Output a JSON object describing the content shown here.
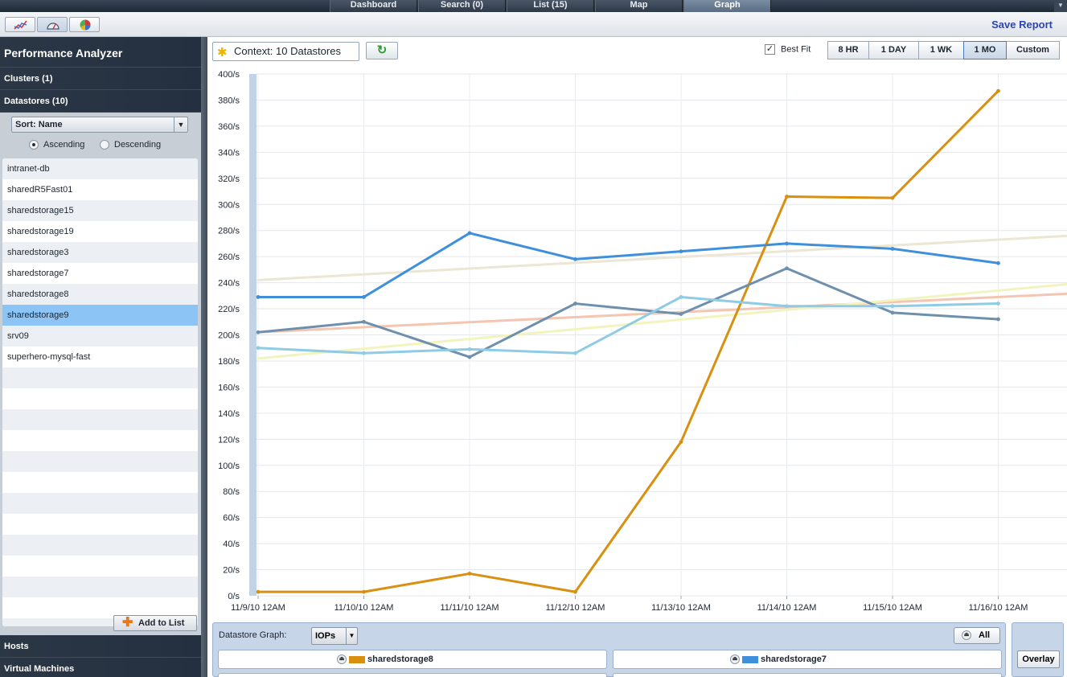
{
  "nav": {
    "tabs": [
      "Dashboard",
      "Search (0)",
      "List (15)",
      "Map",
      "Graph"
    ],
    "active_index": 4
  },
  "toolbar": {
    "icons": [
      "line-chart-icon",
      "gauge-icon",
      "pie-chart-icon"
    ],
    "save_label": "Save Report"
  },
  "sidebar": {
    "title": "Performance Analyzer",
    "clusters_label": "Clusters (1)",
    "datastores_label": "Datastores (10)",
    "sort_value": "Sort: Name",
    "ascending_label": "Ascending",
    "descending_label": "Descending",
    "sort_order": "Ascending",
    "items": [
      "intranet-db",
      "sharedR5Fast01",
      "sharedstorage15",
      "sharedstorage19",
      "sharedstorage3",
      "sharedstorage7",
      "sharedstorage8",
      "sharedstorage9",
      "srv09",
      "superhero-mysql-fast"
    ],
    "selected_item": "sharedstorage9",
    "add_to_list_label": "Add to List",
    "hosts_label": "Hosts",
    "vms_label": "Virtual Machines"
  },
  "controls": {
    "context_label": "Context: 10 Datastores",
    "best_fit_label": "Best Fit",
    "best_fit_checked": true,
    "ranges": [
      "8 HR",
      "1 DAY",
      "1 WK",
      "1 MO",
      "Custom"
    ],
    "selected_range": "1 MO"
  },
  "chart_data": {
    "type": "line",
    "x": [
      "11/9/10 12AM",
      "11/10/10 12AM",
      "11/11/10 12AM",
      "11/12/10 12AM",
      "11/13/10 12AM",
      "11/14/10 12AM",
      "11/15/10 12AM",
      "11/16/10 12AM"
    ],
    "y_ticks": [
      "0/s",
      "20/s",
      "40/s",
      "60/s",
      "80/s",
      "100/s",
      "120/s",
      "140/s",
      "160/s",
      "180/s",
      "200/s",
      "220/s",
      "240/s",
      "260/s",
      "280/s",
      "300/s",
      "320/s",
      "340/s",
      "360/s",
      "380/s",
      "400/s"
    ],
    "ylim": [
      0,
      400
    ],
    "grid": true,
    "series": [
      {
        "name": "sharedstorage8",
        "color": "#d98f0f",
        "values": [
          3,
          3,
          17,
          3,
          118,
          306,
          305,
          387
        ]
      },
      {
        "name": "sharedstorage7",
        "color": "#3f8fdb",
        "values": [
          229,
          229,
          278,
          258,
          264,
          270,
          266,
          255
        ]
      },
      {
        "color": "#6f90ad",
        "values": [
          202,
          210,
          183,
          224,
          216,
          251,
          217,
          212
        ]
      },
      {
        "color": "#8ecbe4",
        "values": [
          190,
          186,
          189,
          186,
          229,
          222,
          222,
          224
        ]
      }
    ],
    "fit_lines": [
      {
        "color": "#ece6d4",
        "values": [
          242,
          273
        ]
      },
      {
        "color": "#f4c6b2",
        "values": [
          202,
          229
        ]
      },
      {
        "color": "#f2f4c0",
        "values": [
          182,
          234
        ]
      }
    ]
  },
  "graph_panel": {
    "label": "Datastore Graph:",
    "metric": "IOPs",
    "all_label": "All",
    "legend": [
      {
        "name": "sharedstorage8",
        "color": "#d98f0f"
      },
      {
        "name": "sharedstorage7",
        "color": "#3f8fdb"
      }
    ],
    "overlay_label": "Overlay"
  }
}
